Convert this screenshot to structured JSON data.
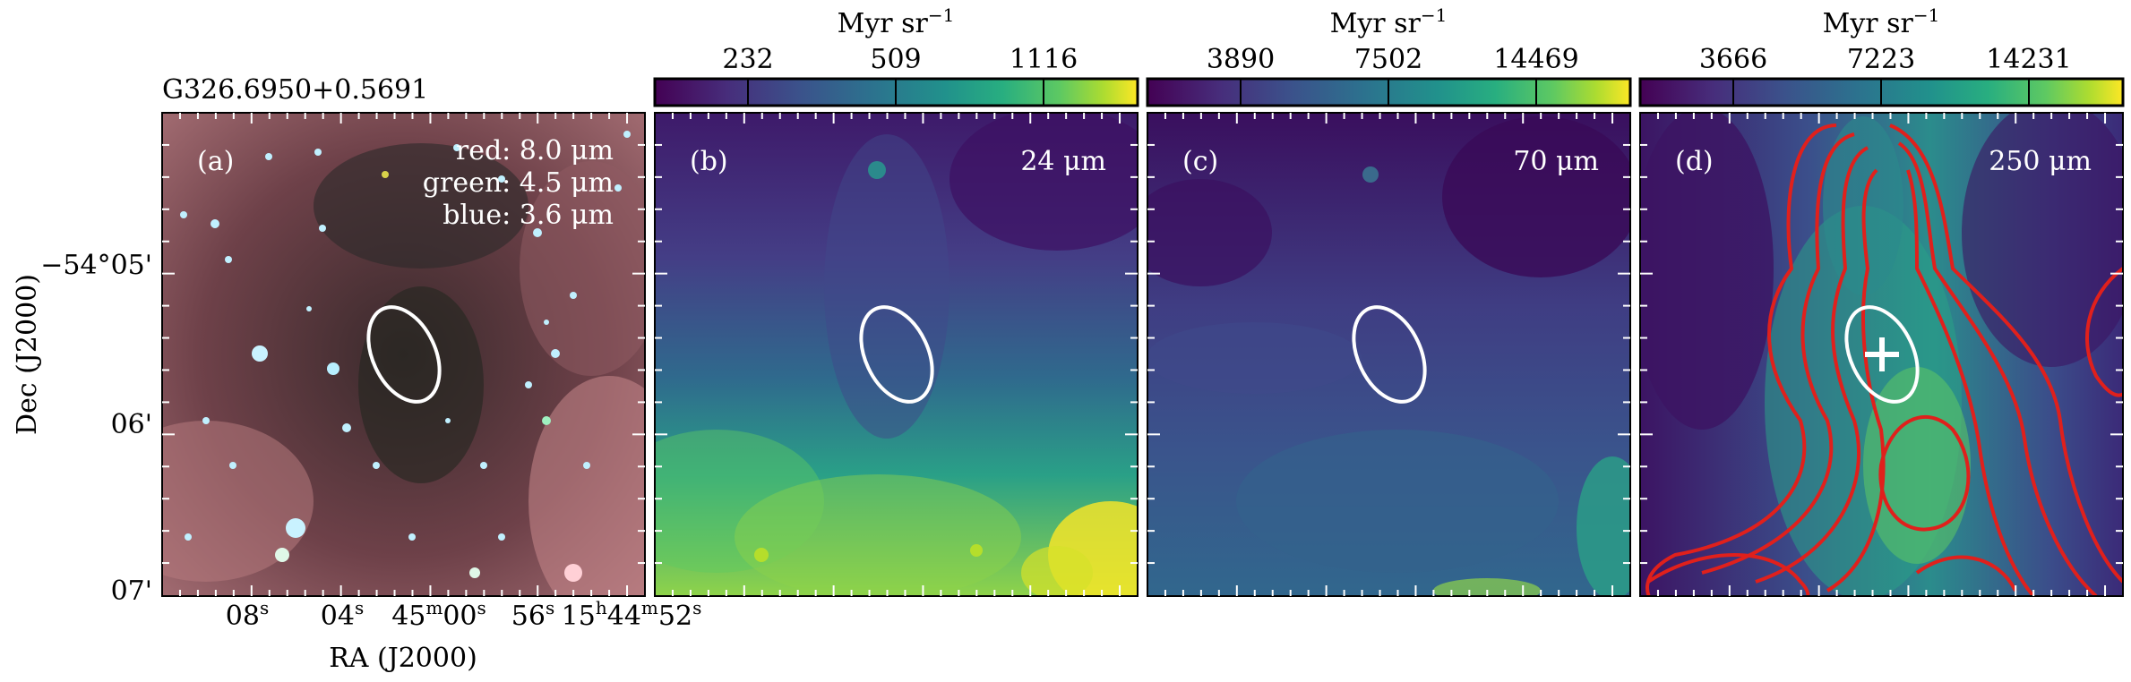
{
  "source_name": "G326.6950+0.5691",
  "axes": {
    "ra_label": "RA (J2000)",
    "dec_label": "Dec (J2000)",
    "ra_ticks": [
      {
        "main": "08",
        "sup": "s"
      },
      {
        "main": "04",
        "sup": "s"
      },
      {
        "main": "45",
        "sup": "m",
        "main2": "00",
        "sup2": "s"
      },
      {
        "main": "56",
        "sup": "s"
      },
      {
        "main": "15",
        "sup": "h",
        "main2": "44",
        "sup2": "m",
        "main3": "52",
        "sup3": "s"
      }
    ],
    "dec_ticks": [
      "−54°05'",
      "06'",
      "07'"
    ]
  },
  "panels": [
    {
      "letter": "(a)",
      "legend": [
        "red: 8.0 μm",
        "green: 4.5 μm",
        "blue: 3.6 μm"
      ]
    },
    {
      "letter": "(b)",
      "band": "24 μm",
      "colorbar": {
        "unit": "Myr sr",
        "unit_exp": "−1",
        "ticks": [
          "232",
          "509",
          "1116"
        ]
      }
    },
    {
      "letter": "(c)",
      "band": "70 μm",
      "colorbar": {
        "unit": "Myr sr",
        "unit_exp": "−1",
        "ticks": [
          "3890",
          "7502",
          "14469"
        ]
      }
    },
    {
      "letter": "(d)",
      "band": "250 μm",
      "colorbar": {
        "unit": "Myr sr",
        "unit_exp": "−1",
        "ticks": [
          "3666",
          "7223",
          "14231"
        ]
      }
    }
  ],
  "colors": {
    "ellipse": "#ffffff",
    "contours": "#e0201c",
    "viridis_low": "#440154",
    "viridis_high": "#fde725"
  }
}
